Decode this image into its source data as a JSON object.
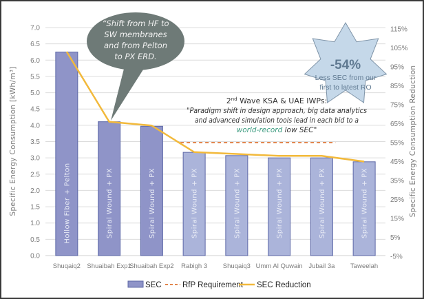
{
  "chart_data": {
    "type": "bar",
    "categories": [
      "Shuqaiq2",
      "Shuaibah Exp1",
      "Shuaibah Exp2",
      "Rabigh 3",
      "Shuqaiq3",
      "Umm Al Quwain",
      "Jubail 3a",
      "Taweelah"
    ],
    "bar_labels": [
      "Hollow Fiber + Pelton",
      "Spiral Wound + PX",
      "Spiral Wound + PX",
      "Spiral Wound + PX",
      "Spiral Wound + PX",
      "Spiral Wound + PX",
      "Spiral Wound + PX",
      "Spiral Wound + PX"
    ],
    "series": [
      {
        "name": "SEC",
        "type": "bar",
        "axis": "left",
        "values": [
          6.25,
          4.11,
          3.97,
          3.17,
          3.07,
          3.0,
          3.0,
          2.88
        ]
      },
      {
        "name": "RfP Requirement",
        "type": "line",
        "style": "dashed",
        "axis": "right",
        "values": [
          null,
          null,
          null,
          55,
          55,
          55,
          55,
          null
        ]
      },
      {
        "name": "SEC Reduction",
        "type": "line",
        "axis": "right",
        "values": [
          103,
          66,
          64,
          50,
          49,
          48,
          48,
          45
        ]
      }
    ],
    "ylabel": "Specific Energy Consumption [kWh/m³]",
    "y2label": "Specific Energy Consumption Reduction",
    "ylim": [
      0,
      7
    ],
    "yticks": [
      "0.0",
      "0.5",
      "1.0",
      "1.5",
      "2.0",
      "2.5",
      "3.0",
      "3.5",
      "4.0",
      "4.5",
      "5.0",
      "5.5",
      "6.0",
      "6.5",
      "7.0"
    ],
    "y2lim": [
      -5,
      115
    ],
    "y2ticks": [
      "-5%",
      "5%",
      "15%",
      "25%",
      "35%",
      "45%",
      "55%",
      "65%",
      "75%",
      "85%",
      "95%",
      "105%",
      "115%"
    ],
    "grid": true,
    "legend_position": "bottom",
    "colors": {
      "bar_early": "#8f94c8",
      "bar_late": "#abb4da",
      "bar_border": "#5c67a6",
      "rfp": "#e2864e",
      "reduction": "#f2b93b",
      "grid": "#dcdcdc"
    },
    "early_bar_count": 3
  },
  "annotations": {
    "bubble": {
      "lines": [
        "“Shift from HF to",
        "SW membranes",
        "and from Pelton",
        "to PX ERD."
      ],
      "color": "#6e7a77"
    },
    "star": {
      "headline": "-54%",
      "lines": [
        "Less SEC from our",
        "first to latest RO"
      ],
      "fill": "#c5d8e9",
      "stroke": "#7f94a8"
    },
    "note": {
      "heading_prefix": "2",
      "heading_sup": "nd",
      "heading_rest": " Wave KSA & UAE IWPs:",
      "line1": "\"Paradigm shift in design approach, big data analytics",
      "line2": "and advanced simulation tools lead in each bid to a",
      "line3_green": "world-record",
      "line3_rest": " low SEC\""
    }
  },
  "legend": {
    "items": [
      "SEC",
      "RfP Requirement",
      "SEC Reduction"
    ]
  }
}
